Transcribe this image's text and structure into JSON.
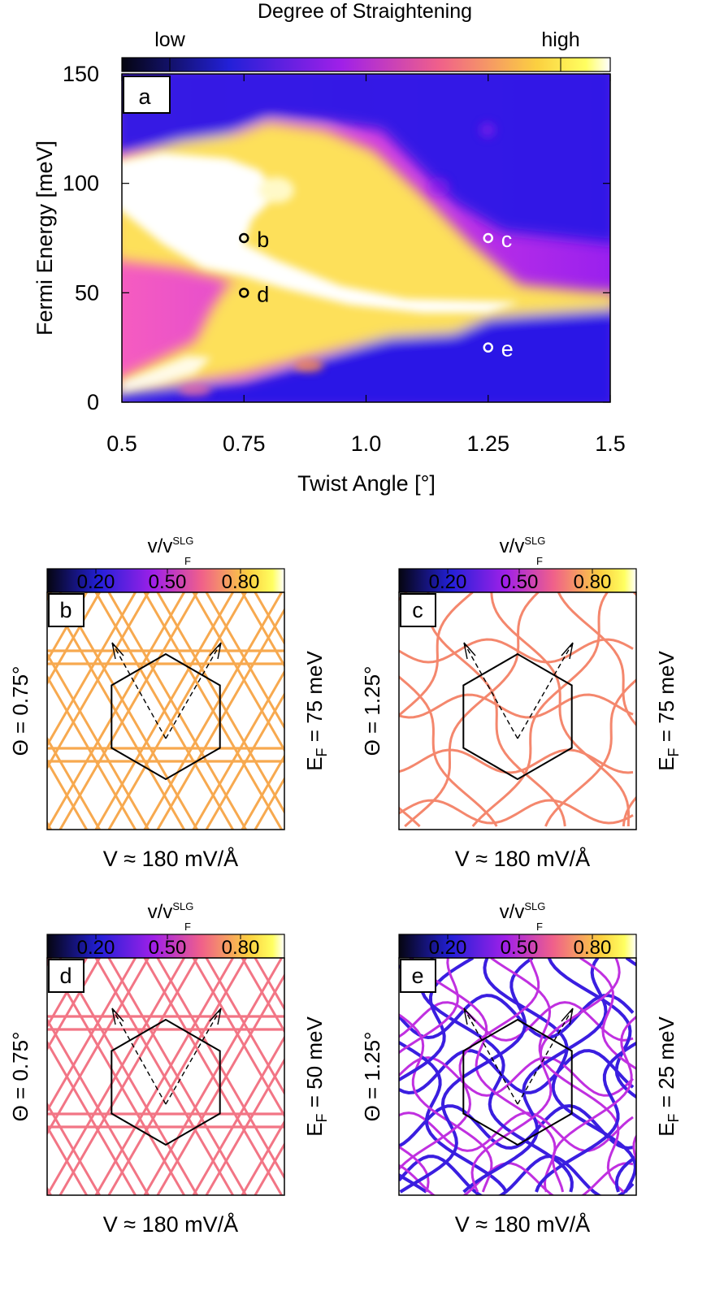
{
  "chart_data": [
    {
      "id": "a",
      "type": "heatmap",
      "panel_label": "a",
      "title": "Degree of Straightening",
      "colorbar": {
        "low_label": "low",
        "high_label": "high"
      },
      "xlabel": "Twist Angle [°]",
      "ylabel": "Fermi Energy [meV]",
      "xlim": [
        0.5,
        1.5
      ],
      "ylim": [
        0,
        150
      ],
      "xticks": [
        0.5,
        0.75,
        1.0,
        1.25,
        1.5
      ],
      "xtick_labels": [
        "0.5",
        "0.75",
        "1.0",
        "1.25",
        "1.5"
      ],
      "yticks": [
        0,
        50,
        100,
        150
      ],
      "ytick_labels": [
        "0",
        "50",
        "100",
        "150"
      ],
      "markers": [
        {
          "label": "b",
          "x": 0.75,
          "y": 75,
          "color": "#000000"
        },
        {
          "label": "d",
          "x": 0.75,
          "y": 50,
          "color": "#000000"
        },
        {
          "label": "c",
          "x": 1.25,
          "y": 75,
          "color": "#ffffff"
        },
        {
          "label": "e",
          "x": 1.25,
          "y": 25,
          "color": "#ffffff"
        }
      ]
    },
    {
      "id": "b",
      "type": "other",
      "panel_label": "b",
      "colorbar": {
        "label_main": "v/v",
        "label_sup": "SLG",
        "label_sub": "F",
        "ticks": [
          "0.20",
          "0.50",
          "0.80"
        ]
      },
      "left_label": "Θ = 0.75°",
      "right_label_main": "E",
      "right_label_sub": "F",
      "right_label_rest": " = 75 meV",
      "bottom_label": "V ≈ 180 mV/Å",
      "line_color": "#f7a94f",
      "style": "kagome"
    },
    {
      "id": "c",
      "type": "other",
      "panel_label": "c",
      "colorbar": {
        "label_main": "v/v",
        "label_sup": "SLG",
        "label_sub": "F",
        "ticks": [
          "0.20",
          "0.50",
          "0.80"
        ]
      },
      "left_label": "Θ = 1.25°",
      "right_label_main": "E",
      "right_label_sub": "F",
      "right_label_rest": " = 75 meV",
      "bottom_label": "V ≈ 180 mV/Å",
      "line_color": "#f4876d",
      "style": "wavy"
    },
    {
      "id": "d",
      "type": "other",
      "panel_label": "d",
      "colorbar": {
        "label_main": "v/v",
        "label_sup": "SLG",
        "label_sub": "F",
        "ticks": [
          "0.20",
          "0.50",
          "0.80"
        ]
      },
      "left_label": "Θ = 0.75°",
      "right_label_main": "E",
      "right_label_sub": "F",
      "right_label_rest": " = 50 meV",
      "bottom_label": "V ≈ 180 mV/Å",
      "line_color": "#f27585",
      "style": "kagome"
    },
    {
      "id": "e",
      "type": "other",
      "panel_label": "e",
      "colorbar": {
        "label_main": "v/v",
        "label_sup": "SLG",
        "label_sub": "F",
        "ticks": [
          "0.20",
          "0.50",
          "0.80"
        ]
      },
      "left_label": "Θ = 1.25°",
      "right_label_main": "E",
      "right_label_sub": "F",
      "right_label_rest": " = 25 meV",
      "bottom_label": "V ≈ 180 mV/Å",
      "line_color": "#3a1ee0",
      "style": "knot"
    }
  ]
}
